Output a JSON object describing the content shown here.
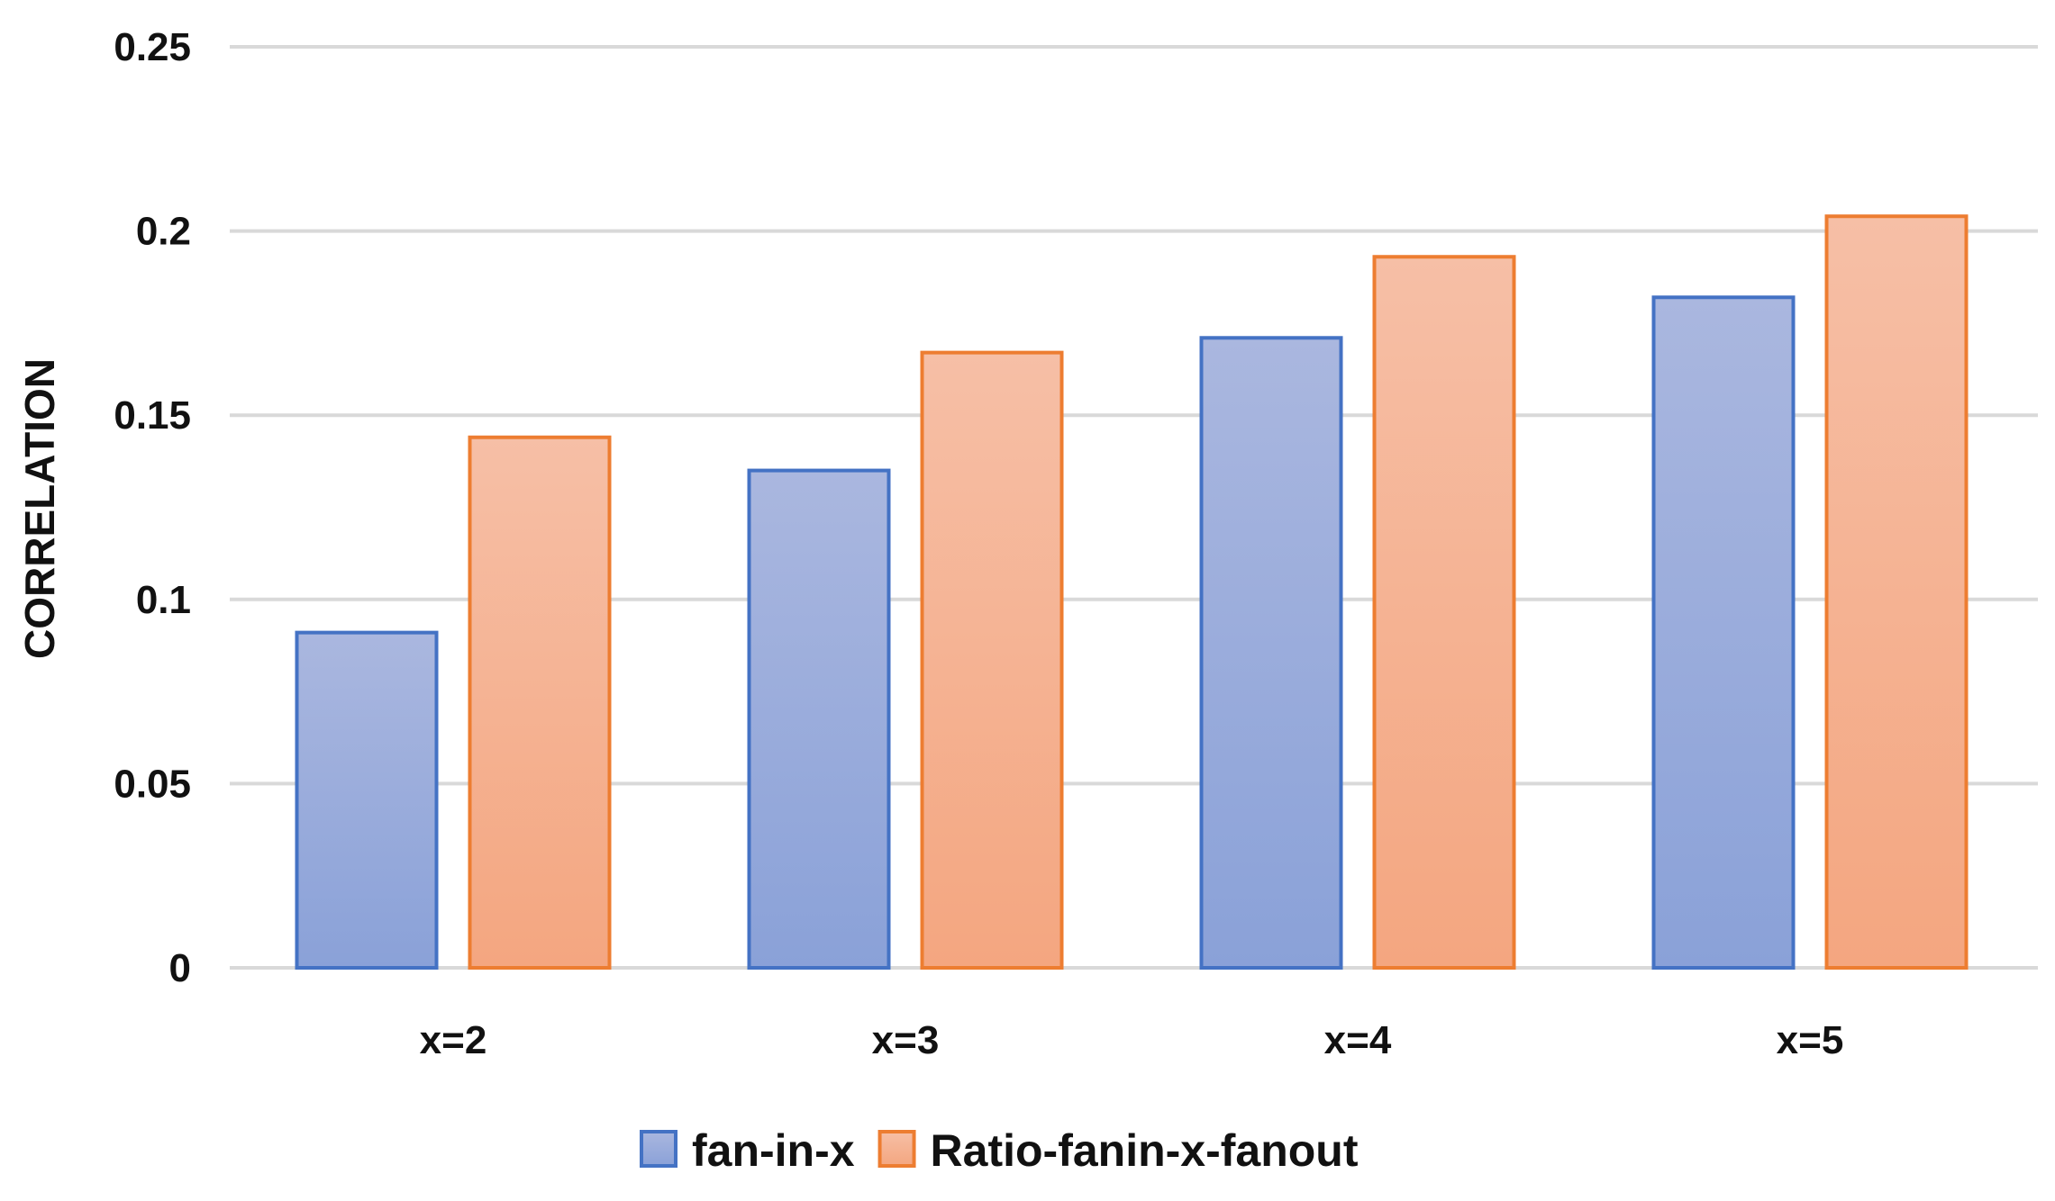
{
  "chart_data": {
    "type": "bar",
    "title": "",
    "xlabel": "",
    "ylabel": "CORRELATION",
    "categories": [
      "x=2",
      "x=3",
      "x=4",
      "x=5"
    ],
    "series": [
      {
        "name": "fan-in-x",
        "values": [
          0.091,
          0.135,
          0.171,
          0.182
        ],
        "color_top": "#aab7df",
        "color_bottom": "#8aa1d8",
        "border_color": "#4472c4"
      },
      {
        "name": "Ratio-fanin-x-fanout",
        "values": [
          0.144,
          0.167,
          0.193,
          0.204
        ],
        "color_top": "#f6bfa6",
        "color_bottom": "#f4a680",
        "border_color": "#ed7d31"
      }
    ],
    "ylim": [
      0,
      0.25
    ],
    "yticks": [
      0,
      0.05,
      0.1,
      0.15,
      0.2,
      0.25
    ],
    "ytick_labels": [
      "0",
      "0.05",
      "0.1",
      "0.15",
      "0.2",
      "0.25"
    ],
    "grid": true,
    "legend_position": "bottom"
  }
}
